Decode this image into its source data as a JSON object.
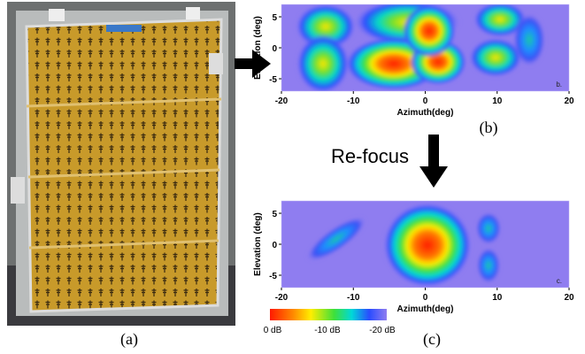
{
  "panels": [
    {
      "label": "(a)"
    },
    {
      "label": "(b)",
      "corner_label": "b.",
      "xlabel": "Azimuth(deg)",
      "ylabel": "Elevation (deg)",
      "xlim": [
        -20,
        20
      ],
      "ylim": [
        -7,
        7
      ],
      "xticks": [
        -20,
        -10,
        0,
        10,
        20
      ],
      "yticks": [
        5,
        0,
        -5
      ]
    },
    {
      "label": "(c)",
      "corner_label": "c.",
      "xlabel": "Azimuth(deg)",
      "ylabel": "Elevation (deg)",
      "xlim": [
        -20,
        20
      ],
      "ylim": [
        -7,
        7
      ],
      "xticks": [
        -20,
        -10,
        0,
        10,
        20
      ],
      "yticks": [
        5,
        0,
        -5
      ]
    }
  ],
  "arrow_label": "Re-focus",
  "colorbar_labels": [
    "0 dB",
    "-10 dB",
    "-20 dB"
  ]
}
